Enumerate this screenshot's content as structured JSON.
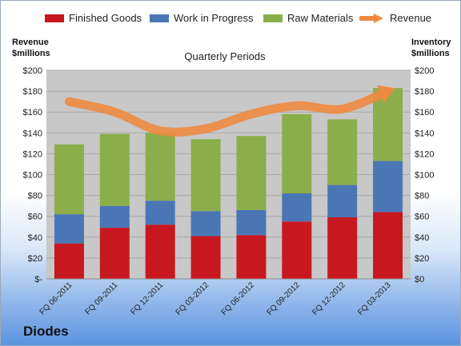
{
  "company": "Diodes",
  "colors": {
    "finished_goods": "#c8181f",
    "work_in_progress": "#4a76b5",
    "raw_materials": "#8bae4a",
    "revenue": "#ee8a40",
    "plot_bg": "#c8c8c8"
  },
  "legend": [
    {
      "label": "Finished Goods",
      "color": "#c8181f",
      "kind": "box"
    },
    {
      "label": "Work in Progress",
      "color": "#4a76b5",
      "kind": "box"
    },
    {
      "label": "Raw Materials",
      "color": "#8bae4a",
      "kind": "box"
    },
    {
      "label": "Revenue",
      "color": "#ee8a40",
      "kind": "arrow"
    }
  ],
  "chart_data": {
    "type": "bar",
    "stacked": true,
    "title": "Quarterly Periods",
    "ylabel_left": "Revenue\n$millions",
    "ylabel_right": "Inventory\n$millions",
    "ylim": [
      0,
      200
    ],
    "yticks_left": [
      "$-",
      "$20",
      "$40",
      "$60",
      "$80",
      "$100",
      "$120",
      "$140",
      "$160",
      "$180",
      "$200"
    ],
    "yticks_right": [
      "$0",
      "$20",
      "$40",
      "$60",
      "$80",
      "$100",
      "$120",
      "$140",
      "$160",
      "$180",
      "$200"
    ],
    "categories": [
      "FQ 06-2011",
      "FQ 09-2011",
      "FQ 12-2011",
      "FQ 03-2012",
      "FQ 06-2012",
      "FQ 09-2012",
      "FQ 12-2012",
      "FQ 03-2013"
    ],
    "series": [
      {
        "name": "Finished Goods",
        "values": [
          34,
          49,
          52,
          41,
          42,
          55,
          59,
          64
        ]
      },
      {
        "name": "Work in Progress",
        "values": [
          28,
          21,
          23,
          24,
          24,
          27,
          31,
          49
        ]
      },
      {
        "name": "Raw Materials",
        "values": [
          67,
          69,
          65,
          69,
          71,
          76,
          63,
          70
        ]
      }
    ],
    "line_series": {
      "name": "Revenue",
      "values": [
        170,
        160,
        142,
        144,
        158,
        166,
        163,
        180
      ]
    },
    "grid": true,
    "legend_position": "top"
  }
}
